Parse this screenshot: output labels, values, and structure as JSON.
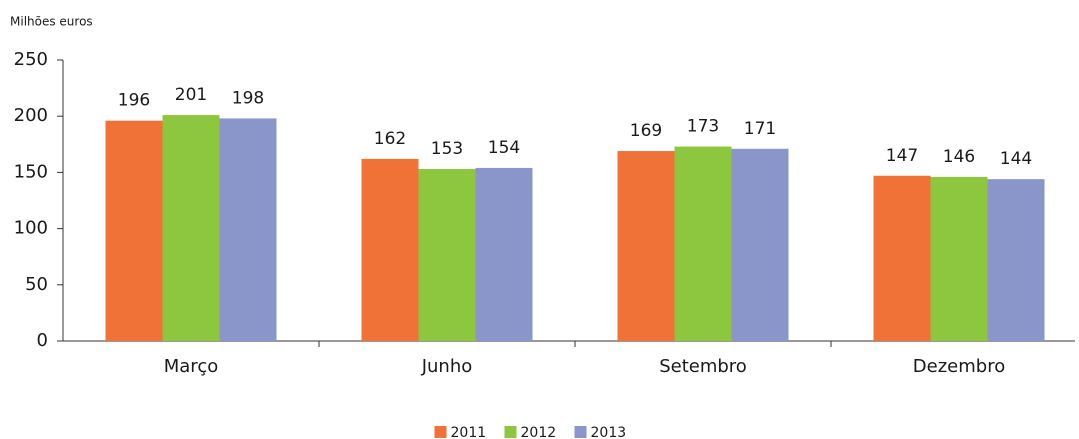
{
  "chart_data": {
    "type": "bar",
    "title": "Milhões euros",
    "categories": [
      "Março",
      "Junho",
      "Setembro",
      "Dezembro"
    ],
    "series": [
      {
        "name": "2011",
        "color": "#f07236",
        "values": [
          196,
          162,
          169,
          147
        ]
      },
      {
        "name": "2012",
        "color": "#8dc63f",
        "values": [
          201,
          153,
          173,
          146
        ]
      },
      {
        "name": "2013",
        "color": "#8a96c9",
        "values": [
          198,
          154,
          171,
          144
        ]
      }
    ],
    "ylim": [
      0,
      250
    ],
    "yticks": [
      0,
      50,
      100,
      150,
      200,
      250
    ],
    "grid": false,
    "legend": "bottom"
  }
}
